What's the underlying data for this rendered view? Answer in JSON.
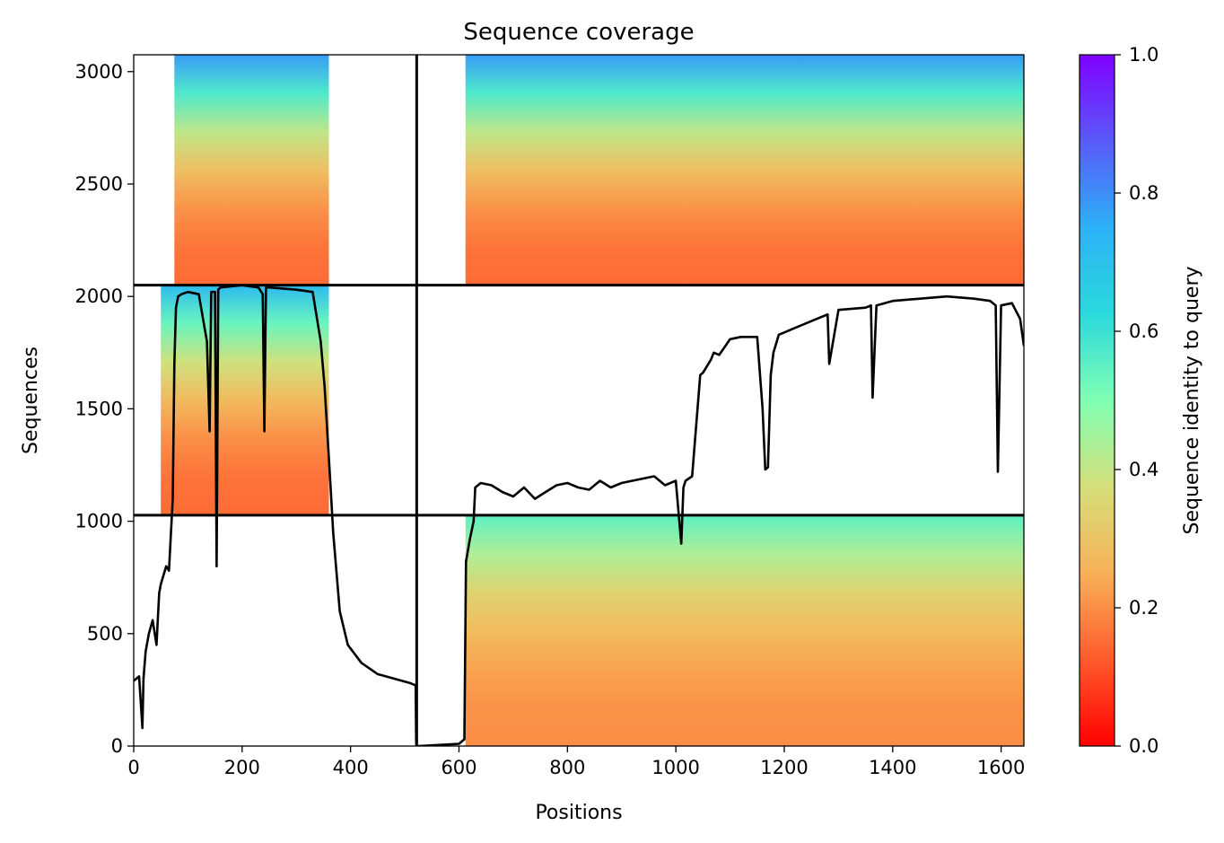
{
  "chart_data": {
    "type": "heatmap",
    "title": "Sequence coverage",
    "xlabel": "Positions",
    "ylabel": "Sequences",
    "colorbar_label": "Sequence identity to query",
    "xlim": [
      0,
      1642
    ],
    "ylim": [
      0,
      3075
    ],
    "xticks": [
      0,
      200,
      400,
      600,
      800,
      1000,
      1200,
      1400,
      1600
    ],
    "yticks": [
      0,
      500,
      1000,
      1500,
      2000,
      2500,
      3000
    ],
    "colorbar_ticks": [
      0.0,
      0.2,
      0.4,
      0.6,
      0.8,
      1.0
    ],
    "colorbar_tick_labels": [
      "0.0",
      "0.2",
      "0.4",
      "0.6",
      "0.8",
      "1.0"
    ],
    "colorbar_range": [
      0.0,
      1.0
    ],
    "colormap": "rainbow_r",
    "grid": false,
    "chain_boundaries_x": [
      522
    ],
    "chain_boundaries_y": [
      1027,
      2050
    ],
    "blocks": [
      {
        "name": "chain-1-aligned",
        "x": [
          0,
          522
        ],
        "y": [
          2050,
          3075
        ],
        "cover_x": [
          75,
          360
        ],
        "top_identity": 0.78,
        "bottom_identity": 0.15
      },
      {
        "name": "chain-2-aligned",
        "x": [
          612,
          1642
        ],
        "y": [
          2050,
          3075
        ],
        "cover_x": [
          612,
          1642
        ],
        "top_identity": 0.78,
        "bottom_identity": 0.15
      },
      {
        "name": "chain-1-only",
        "x": [
          0,
          522
        ],
        "y": [
          1027,
          2050
        ],
        "cover_x": [
          50,
          360
        ],
        "top_identity": 0.72,
        "bottom_identity": 0.15
      },
      {
        "name": "chain-2-only",
        "x": [
          612,
          1642
        ],
        "y": [
          0,
          1027
        ],
        "cover_x": [
          612,
          1642
        ],
        "top_identity": 0.55,
        "bottom_identity": 0.2
      }
    ],
    "coverage_line": {
      "x": [
        0,
        10,
        16,
        18,
        22,
        28,
        35,
        42,
        47,
        50,
        55,
        60,
        65,
        72,
        75,
        78,
        82,
        88,
        100,
        120,
        135,
        140,
        143,
        146,
        150,
        153,
        156,
        160,
        200,
        230,
        238,
        241,
        244,
        250,
        300,
        330,
        345,
        352,
        357,
        362,
        368,
        380,
        395,
        420,
        450,
        480,
        510,
        520,
        521,
        522,
        525,
        600,
        610,
        613,
        620,
        627,
        630,
        640,
        660,
        680,
        700,
        720,
        740,
        760,
        780,
        800,
        820,
        840,
        860,
        880,
        900,
        920,
        940,
        960,
        980,
        1000,
        1010,
        1014,
        1018,
        1030,
        1040,
        1045,
        1050,
        1060,
        1065,
        1070,
        1080,
        1100,
        1120,
        1150,
        1160,
        1165,
        1170,
        1175,
        1180,
        1190,
        1200,
        1220,
        1240,
        1260,
        1280,
        1283,
        1300,
        1350,
        1360,
        1363,
        1370,
        1400,
        1450,
        1500,
        1550,
        1580,
        1590,
        1594,
        1600,
        1620,
        1635,
        1642
      ],
      "y": [
        290,
        310,
        80,
        300,
        420,
        500,
        560,
        450,
        680,
        720,
        760,
        800,
        780,
        1100,
        1700,
        1950,
        2000,
        2010,
        2020,
        2010,
        1800,
        1400,
        2020,
        2020,
        2020,
        800,
        2030,
        2040,
        2050,
        2040,
        2010,
        1400,
        2040,
        2040,
        2030,
        2020,
        1800,
        1600,
        1400,
        1200,
        950,
        600,
        450,
        370,
        320,
        300,
        280,
        270,
        10,
        0,
        0,
        10,
        30,
        820,
        920,
        1000,
        1150,
        1170,
        1160,
        1130,
        1110,
        1150,
        1100,
        1130,
        1160,
        1170,
        1150,
        1140,
        1180,
        1150,
        1170,
        1180,
        1190,
        1200,
        1160,
        1180,
        900,
        1150,
        1180,
        1200,
        1500,
        1650,
        1660,
        1700,
        1720,
        1750,
        1740,
        1810,
        1820,
        1820,
        1500,
        1230,
        1240,
        1650,
        1750,
        1830,
        1840,
        1860,
        1880,
        1900,
        1920,
        1700,
        1940,
        1950,
        1960,
        1550,
        1960,
        1980,
        1990,
        2000,
        1990,
        1980,
        1960,
        1220,
        1960,
        1970,
        1900,
        1780
      ]
    }
  }
}
